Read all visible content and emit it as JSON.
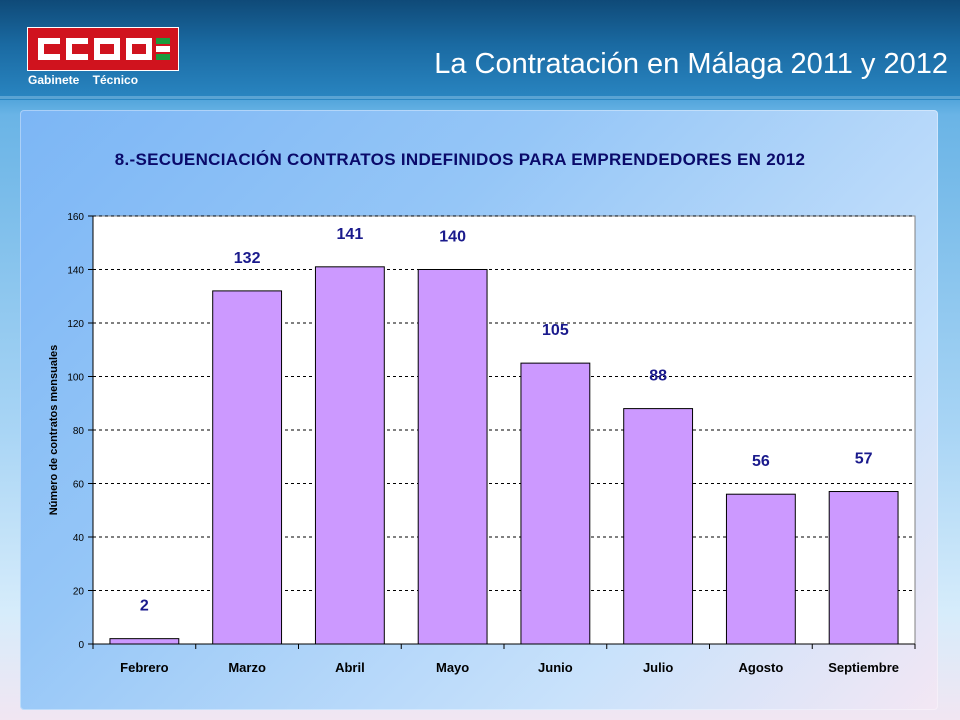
{
  "header": {
    "title": "La Contratación en Málaga 2011 y 2012",
    "logo_subtitle": "Gabinete Técnico",
    "logo_text": "CCOO"
  },
  "colors": {
    "bar": "#cc99ff",
    "brand_red": "#d0131e",
    "label": "#1a1a8c"
  },
  "chart_data": {
    "type": "bar",
    "title": "8.-SECUENCIACIÓN CONTRATOS INDEFINIDOS PARA EMPRENDEDORES EN 2012",
    "categories": [
      "Febrero",
      "Marzo",
      "Abril",
      "Mayo",
      "Junio",
      "Julio",
      "Agosto",
      "Septiembre"
    ],
    "values": [
      2,
      132,
      141,
      140,
      105,
      88,
      56,
      57
    ],
    "xlabel": "",
    "ylabel": "Número de contratos mensuales",
    "ylim": [
      0,
      160
    ],
    "yticks": [
      0,
      20,
      40,
      60,
      80,
      100,
      120,
      140,
      160
    ],
    "grid": "dashed horizontal",
    "legend": "none"
  }
}
